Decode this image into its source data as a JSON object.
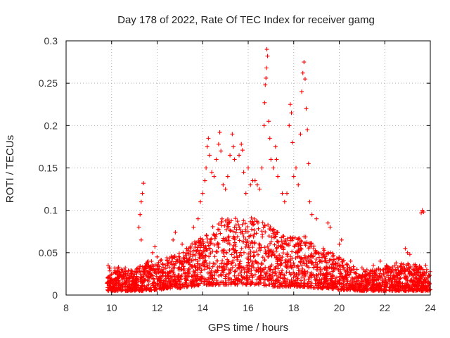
{
  "chart_data": {
    "type": "scatter",
    "title": "Day 178 of 2022, Rate Of TEC Index for receiver gamg",
    "xlabel": "GPS time / hours",
    "ylabel": "ROTI / TECUs",
    "xlim": [
      8,
      24
    ],
    "ylim": [
      0,
      0.3
    ],
    "grid": true,
    "marker": "plus",
    "series_color": "#ff0000",
    "x_ticks": [
      8,
      10,
      12,
      14,
      16,
      18,
      20,
      22,
      24
    ],
    "x_tick_labels": [
      "8",
      "10",
      "12",
      "14",
      "16",
      "18",
      "20",
      "22",
      "24"
    ],
    "y_ticks": [
      0,
      0.05,
      0.1,
      0.15,
      0.2,
      0.25,
      0.3
    ],
    "y_tick_labels": [
      "0",
      "0.05",
      "0.1",
      "0.15",
      "0.2",
      "0.25",
      "0.3"
    ],
    "band_profile": [
      {
        "x": 9.8,
        "low": 0.005,
        "high": 0.035
      },
      {
        "x": 10.5,
        "low": 0.005,
        "high": 0.03
      },
      {
        "x": 11.0,
        "low": 0.005,
        "high": 0.03
      },
      {
        "x": 11.5,
        "low": 0.005,
        "high": 0.04
      },
      {
        "x": 12.0,
        "low": 0.006,
        "high": 0.04
      },
      {
        "x": 12.5,
        "low": 0.008,
        "high": 0.045
      },
      {
        "x": 13.0,
        "low": 0.008,
        "high": 0.05
      },
      {
        "x": 13.5,
        "low": 0.01,
        "high": 0.06
      },
      {
        "x": 14.0,
        "low": 0.012,
        "high": 0.07
      },
      {
        "x": 14.5,
        "low": 0.012,
        "high": 0.085
      },
      {
        "x": 15.0,
        "low": 0.012,
        "high": 0.095
      },
      {
        "x": 15.5,
        "low": 0.012,
        "high": 0.09
      },
      {
        "x": 16.0,
        "low": 0.012,
        "high": 0.09
      },
      {
        "x": 16.5,
        "low": 0.012,
        "high": 0.095
      },
      {
        "x": 17.0,
        "low": 0.01,
        "high": 0.08
      },
      {
        "x": 17.5,
        "low": 0.01,
        "high": 0.07
      },
      {
        "x": 18.0,
        "low": 0.01,
        "high": 0.07
      },
      {
        "x": 18.5,
        "low": 0.01,
        "high": 0.07
      },
      {
        "x": 19.0,
        "low": 0.008,
        "high": 0.055
      },
      {
        "x": 19.5,
        "low": 0.008,
        "high": 0.055
      },
      {
        "x": 20.0,
        "low": 0.006,
        "high": 0.045
      },
      {
        "x": 20.5,
        "low": 0.006,
        "high": 0.035
      },
      {
        "x": 21.0,
        "low": 0.005,
        "high": 0.03
      },
      {
        "x": 21.5,
        "low": 0.005,
        "high": 0.03
      },
      {
        "x": 22.0,
        "low": 0.005,
        "high": 0.035
      },
      {
        "x": 22.5,
        "low": 0.005,
        "high": 0.035
      },
      {
        "x": 23.0,
        "low": 0.005,
        "high": 0.04
      },
      {
        "x": 23.5,
        "low": 0.005,
        "high": 0.035
      },
      {
        "x": 24.0,
        "low": 0.005,
        "high": 0.03
      }
    ],
    "points": [
      [
        9.85,
        0.035
      ],
      [
        9.9,
        0.032
      ],
      [
        10.3,
        0.033
      ],
      [
        10.6,
        0.032
      ],
      [
        10.9,
        0.028
      ],
      [
        11.2,
        0.08
      ],
      [
        11.25,
        0.095
      ],
      [
        11.3,
        0.11
      ],
      [
        11.35,
        0.12
      ],
      [
        11.4,
        0.132
      ],
      [
        11.3,
        0.065
      ],
      [
        11.6,
        0.04
      ],
      [
        11.8,
        0.05
      ],
      [
        11.9,
        0.057
      ],
      [
        12.0,
        0.045
      ],
      [
        12.7,
        0.065
      ],
      [
        12.8,
        0.074
      ],
      [
        13.1,
        0.06
      ],
      [
        13.3,
        0.055
      ],
      [
        13.6,
        0.08
      ],
      [
        13.8,
        0.09
      ],
      [
        13.9,
        0.11
      ],
      [
        14.0,
        0.12
      ],
      [
        14.1,
        0.135
      ],
      [
        14.15,
        0.15
      ],
      [
        14.2,
        0.175
      ],
      [
        14.25,
        0.185
      ],
      [
        14.3,
        0.165
      ],
      [
        14.4,
        0.145
      ],
      [
        14.5,
        0.14
      ],
      [
        14.6,
        0.16
      ],
      [
        14.7,
        0.178
      ],
      [
        14.75,
        0.192
      ],
      [
        14.8,
        0.17
      ],
      [
        14.9,
        0.13
      ],
      [
        15.0,
        0.125
      ],
      [
        15.1,
        0.14
      ],
      [
        15.2,
        0.165
      ],
      [
        15.3,
        0.19
      ],
      [
        15.35,
        0.175
      ],
      [
        15.4,
        0.16
      ],
      [
        15.6,
        0.165
      ],
      [
        15.7,
        0.178
      ],
      [
        15.75,
        0.171
      ],
      [
        15.8,
        0.145
      ],
      [
        15.9,
        0.12
      ],
      [
        16.0,
        0.15
      ],
      [
        16.1,
        0.13
      ],
      [
        16.2,
        0.135
      ],
      [
        16.3,
        0.135
      ],
      [
        16.4,
        0.13
      ],
      [
        16.5,
        0.125
      ],
      [
        16.6,
        0.15
      ],
      [
        16.7,
        0.2
      ],
      [
        16.72,
        0.227
      ],
      [
        16.75,
        0.248
      ],
      [
        16.78,
        0.256
      ],
      [
        16.8,
        0.268
      ],
      [
        16.82,
        0.29
      ],
      [
        16.85,
        0.282
      ],
      [
        16.9,
        0.205
      ],
      [
        16.95,
        0.185
      ],
      [
        17.0,
        0.16
      ],
      [
        17.1,
        0.15
      ],
      [
        17.2,
        0.175
      ],
      [
        17.25,
        0.16
      ],
      [
        17.3,
        0.14
      ],
      [
        17.5,
        0.12
      ],
      [
        17.6,
        0.11
      ],
      [
        17.7,
        0.12
      ],
      [
        17.8,
        0.2
      ],
      [
        17.85,
        0.225
      ],
      [
        17.9,
        0.215
      ],
      [
        17.95,
        0.18
      ],
      [
        18.0,
        0.14
      ],
      [
        18.1,
        0.15
      ],
      [
        18.2,
        0.13
      ],
      [
        18.3,
        0.19
      ],
      [
        18.35,
        0.24
      ],
      [
        18.4,
        0.262
      ],
      [
        18.45,
        0.275
      ],
      [
        18.5,
        0.255
      ],
      [
        18.55,
        0.22
      ],
      [
        18.6,
        0.195
      ],
      [
        18.65,
        0.155
      ],
      [
        18.7,
        0.11
      ],
      [
        18.8,
        0.095
      ],
      [
        19.0,
        0.09
      ],
      [
        19.5,
        0.085
      ],
      [
        19.6,
        0.08
      ],
      [
        20.0,
        0.06
      ],
      [
        20.1,
        0.065
      ],
      [
        20.5,
        0.04
      ],
      [
        21.0,
        0.032
      ],
      [
        21.5,
        0.035
      ],
      [
        21.8,
        0.04
      ],
      [
        22.2,
        0.03
      ],
      [
        22.5,
        0.038
      ],
      [
        22.9,
        0.055
      ],
      [
        23.0,
        0.05
      ],
      [
        23.1,
        0.048
      ],
      [
        23.5,
        0.03
      ],
      [
        23.6,
        0.097
      ],
      [
        23.65,
        0.1
      ],
      [
        23.7,
        0.098
      ],
      [
        23.8,
        0.035
      ]
    ]
  }
}
